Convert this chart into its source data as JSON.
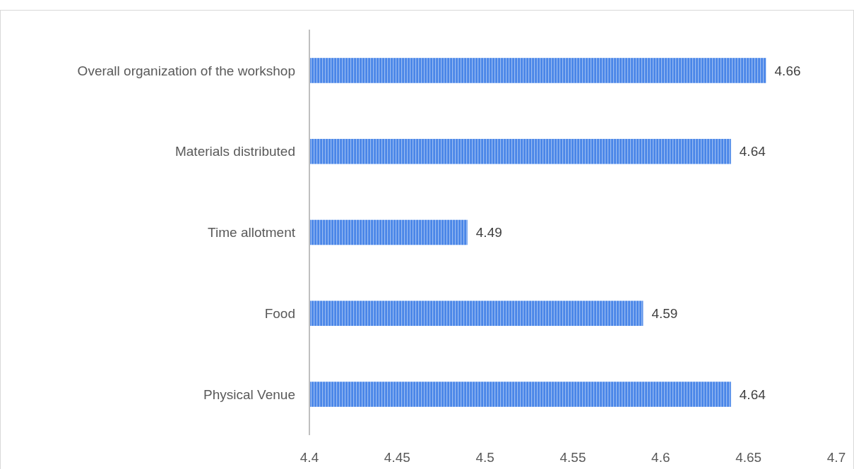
{
  "chart_data": {
    "type": "bar",
    "orientation": "horizontal",
    "categories": [
      "Overall organization of the workshop",
      "Materials distributed",
      "Time allotment",
      "Food",
      "Physical Venue"
    ],
    "values": [
      4.66,
      4.64,
      4.49,
      4.59,
      4.64
    ],
    "color": "#4a86e8",
    "xlim": [
      4.4,
      4.7
    ],
    "xticks": [
      4.4,
      4.45,
      4.5,
      4.55,
      4.6,
      4.65,
      4.7
    ],
    "data_labels": true,
    "grid": false
  }
}
